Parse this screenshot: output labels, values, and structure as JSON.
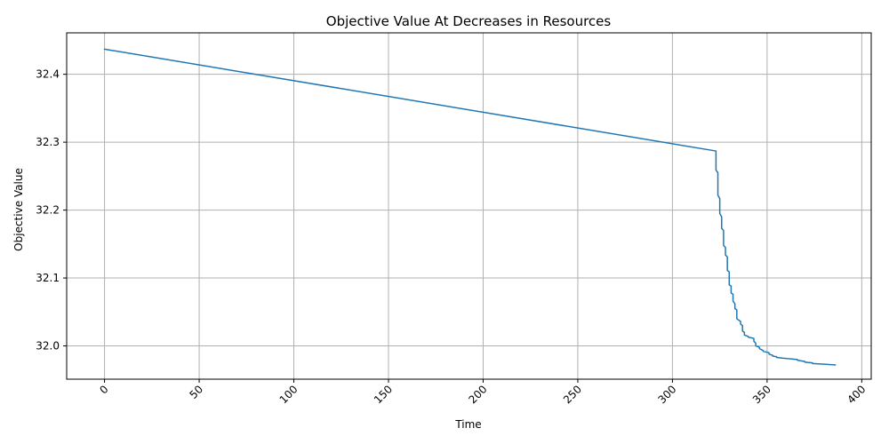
{
  "chart_data": {
    "type": "line",
    "title": "Objective Value At Decreases in Resources",
    "xlabel": "Time",
    "ylabel": "Objective Value",
    "xlim": [
      -20,
      405
    ],
    "ylim": [
      31.951,
      32.461
    ],
    "xticks": [
      0,
      50,
      100,
      150,
      200,
      250,
      300,
      350,
      400
    ],
    "xtick_labels": [
      "0",
      "50",
      "100",
      "150",
      "200",
      "250",
      "300",
      "350",
      "400"
    ],
    "xtick_rotation": 45,
    "yticks": [
      32.0,
      32.1,
      32.2,
      32.3,
      32.4
    ],
    "ytick_labels": [
      "32.0",
      "32.1",
      "32.2",
      "32.3",
      "32.4"
    ],
    "grid": true,
    "series": [
      {
        "color": "#1f77b4",
        "x": [
          0,
          323,
          323,
          324,
          324,
          325,
          325,
          326,
          326,
          327,
          327,
          328,
          328,
          329,
          329,
          330,
          330,
          331,
          331,
          332,
          332,
          333,
          333,
          334,
          334,
          336,
          336,
          337,
          337,
          338,
          338,
          340,
          340,
          343,
          343,
          344,
          344,
          346,
          346,
          348,
          348,
          351,
          351,
          353,
          353,
          355,
          355,
          358,
          358,
          362,
          362,
          366,
          366,
          370,
          370,
          374,
          374,
          380,
          380,
          386
        ],
        "y": [
          32.437,
          32.287,
          32.259,
          32.255,
          32.222,
          32.217,
          32.195,
          32.19,
          32.173,
          32.17,
          32.148,
          32.145,
          32.134,
          32.131,
          32.111,
          32.109,
          32.09,
          32.088,
          32.078,
          32.076,
          32.066,
          32.062,
          32.055,
          32.053,
          32.04,
          32.036,
          32.032,
          32.03,
          32.022,
          32.02,
          32.016,
          32.014,
          32.013,
          32.011,
          32.007,
          32.004,
          32.0,
          31.998,
          31.996,
          31.993,
          31.992,
          31.99,
          31.988,
          31.986,
          31.985,
          31.984,
          31.983,
          31.982,
          31.982,
          31.981,
          31.981,
          31.98,
          31.979,
          31.977,
          31.976,
          31.975,
          31.974,
          31.973,
          31.973,
          31.972
        ]
      }
    ]
  }
}
